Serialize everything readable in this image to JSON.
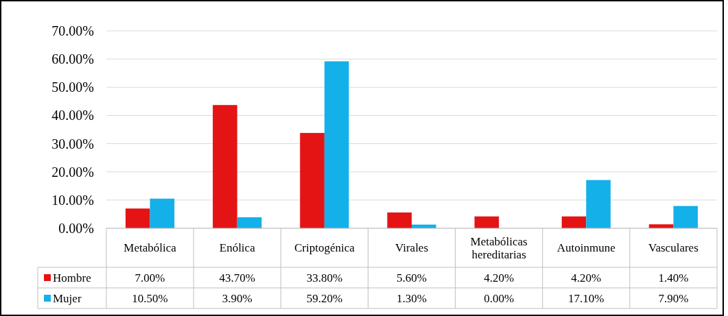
{
  "chart_data": {
    "type": "bar",
    "categories": [
      "Metabólica",
      "Enólica",
      "Criptogénica",
      "Virales",
      "Metabólicas hereditarias",
      "Autoinmune",
      "Vasculares"
    ],
    "series": [
      {
        "name": "Hombre",
        "color": "#e41414",
        "values": [
          7.0,
          43.7,
          33.8,
          5.6,
          4.2,
          4.2,
          1.4
        ],
        "value_labels": [
          "7.00%",
          "43.70%",
          "33.80%",
          "5.60%",
          "4.20%",
          "4.20%",
          "1.40%"
        ]
      },
      {
        "name": "Mujer",
        "color": "#14b0ea",
        "values": [
          10.5,
          3.9,
          59.2,
          1.3,
          0.0,
          17.1,
          7.9
        ],
        "value_labels": [
          "10.50%",
          "3.90%",
          "59.20%",
          "1.30%",
          "0.00%",
          "17.10%",
          "7.90%"
        ]
      }
    ],
    "ylim": [
      0,
      70
    ],
    "yticks": [
      {
        "value": 0,
        "label": "0.00%"
      },
      {
        "value": 10,
        "label": "10.00%"
      },
      {
        "value": 20,
        "label": "20.00%"
      },
      {
        "value": 30,
        "label": "30.00%"
      },
      {
        "value": 40,
        "label": "40.00%"
      },
      {
        "value": 50,
        "label": "50.00%"
      },
      {
        "value": 60,
        "label": "60.00%"
      },
      {
        "value": 70,
        "label": "70.00%"
      }
    ],
    "grid": "y",
    "legend": "bottom"
  }
}
